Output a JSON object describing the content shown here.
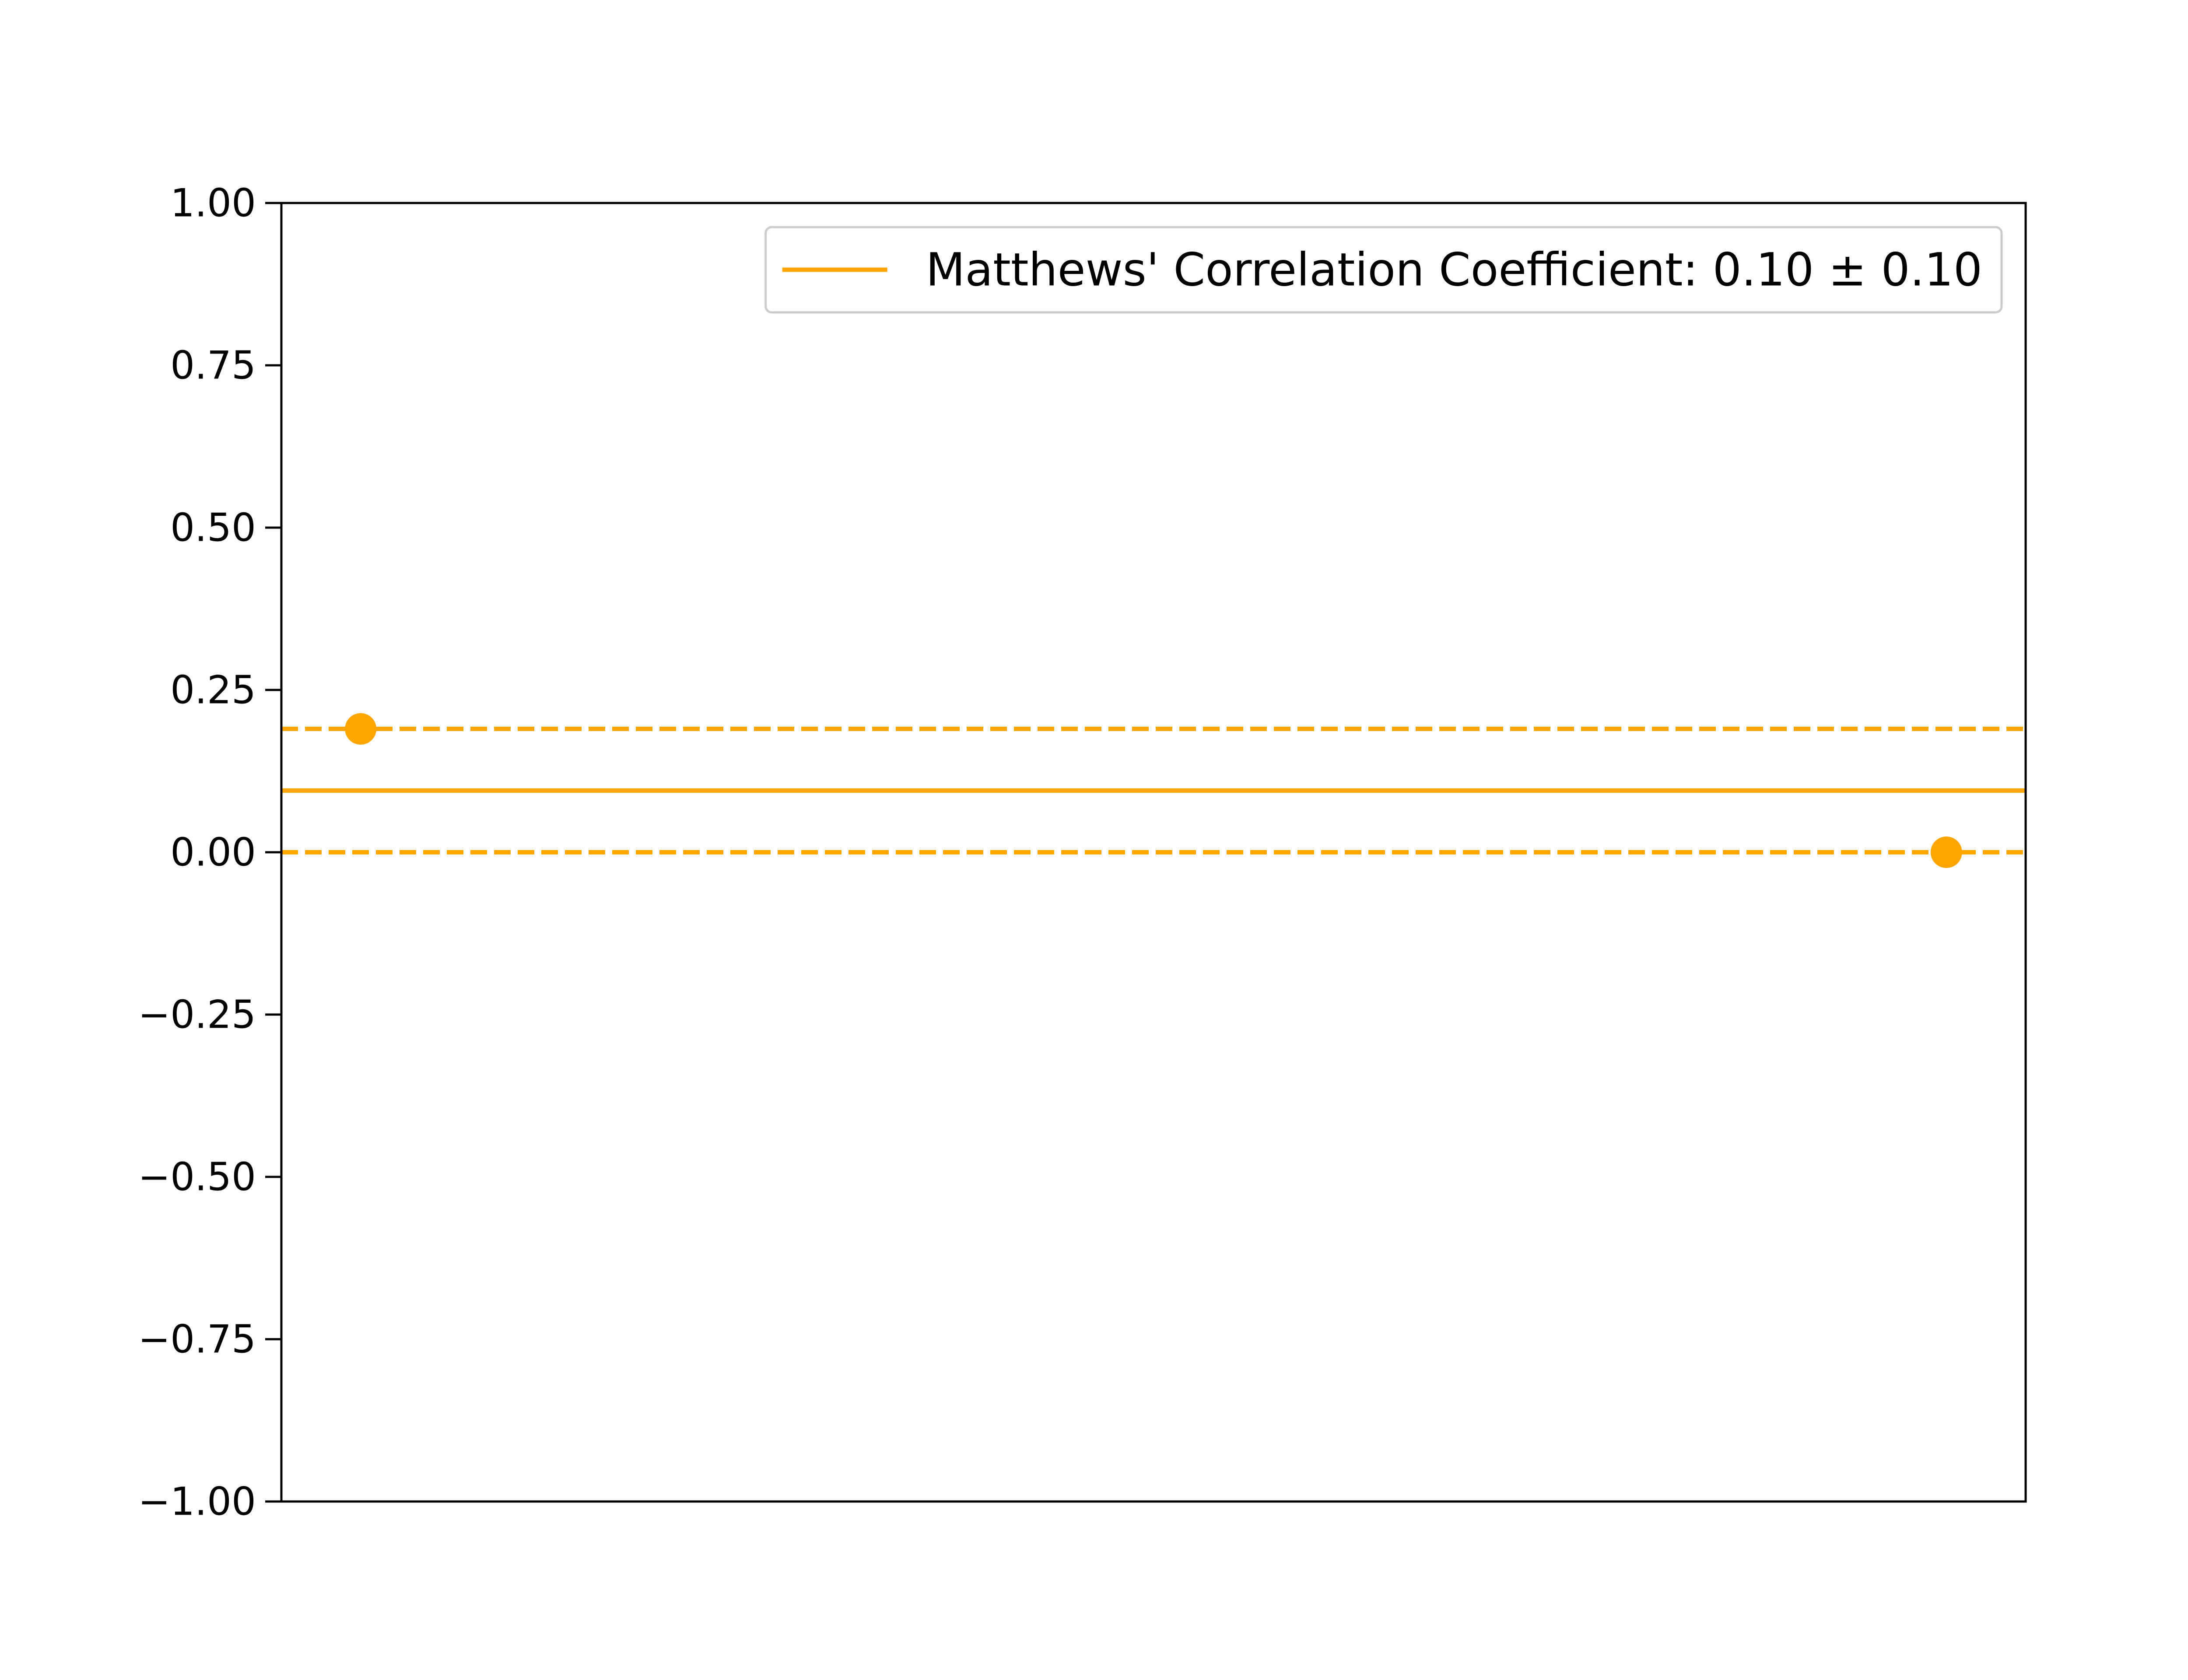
{
  "chart_data": {
    "type": "scatter",
    "title": "",
    "xlabel": "",
    "ylabel": "",
    "x_ticks_visible": false,
    "xlim": [
      -0.05,
      1.05
    ],
    "ylim": [
      -1.0,
      1.0
    ],
    "yticks": [
      1.0,
      0.75,
      0.5,
      0.25,
      0.0,
      -0.25,
      -0.5,
      -0.75,
      -1.0
    ],
    "ytick_labels": [
      "1.00",
      "0.75",
      "0.50",
      "0.25",
      "0.00",
      "−0.25",
      "−0.50",
      "−0.75",
      "−1.00"
    ],
    "grid": false,
    "legend_position": "top-right",
    "color": "#FFA500",
    "points": [
      {
        "x": 0,
        "y": 0.19
      },
      {
        "x": 1,
        "y": 0.0
      }
    ],
    "mean_line": {
      "y": 0.095,
      "style": "solid"
    },
    "bound_lines": [
      {
        "y": 0.19,
        "style": "dashed"
      },
      {
        "y": 0.0,
        "style": "dashed"
      }
    ],
    "legend": {
      "label": "Matthews' Correlation Coefficient: 0.10 ± 0.10"
    }
  }
}
